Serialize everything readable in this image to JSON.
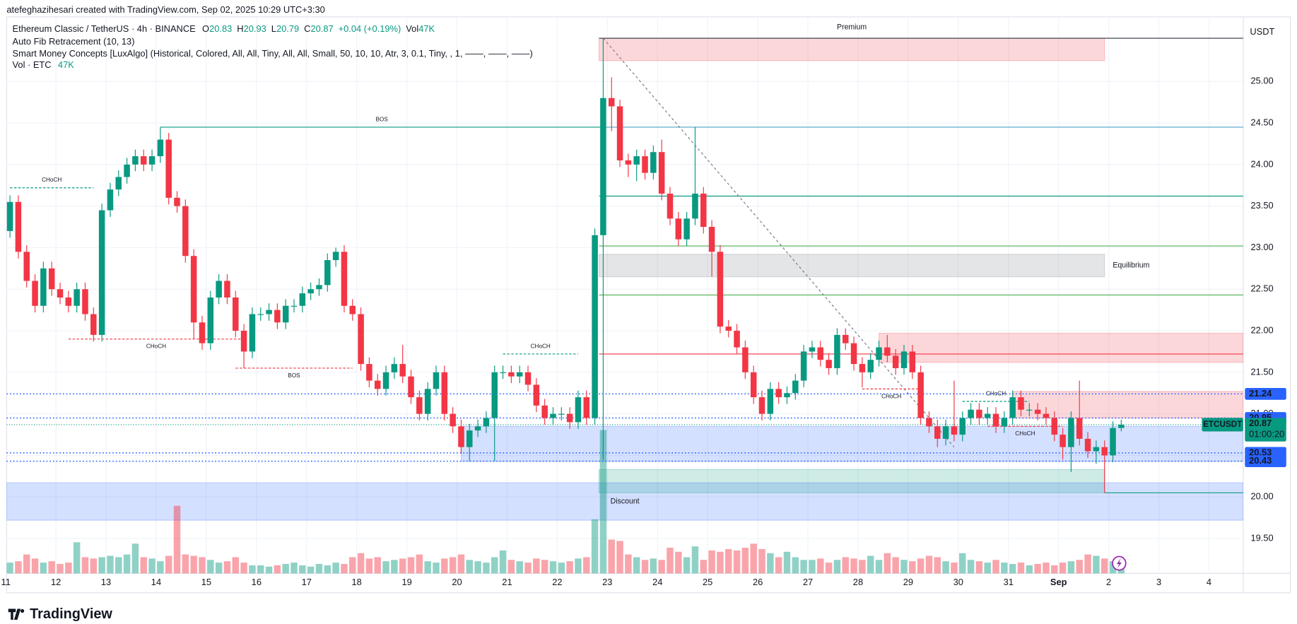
{
  "author_line": "atefeghazihesari created with TradingView.com, Sep 02, 2025 10:29 UTC+3:30",
  "brand": "TradingView",
  "chart_data": {
    "type": "candlestick",
    "title": "Ethereum Classic / TetherUS · 4h · BINANCE",
    "ohlc": [
      {
        "label": "O",
        "value": "20.83"
      },
      {
        "label": "H",
        "value": "20.93"
      },
      {
        "label": "L",
        "value": "20.79"
      },
      {
        "label": "C",
        "value": "20.87"
      }
    ],
    "change": "+0.04 (+0.19%)",
    "volume_prefix": "Vol",
    "volume_value": "47K",
    "indicators": [
      "Auto Fib Retracement (10, 13)",
      "Smart Money Concepts [LuxAlgo] (Historical, Colored, All, All, Tiny, All, All, Small, 50, 10, 10, Atr, 3, 0.1, Tiny, , 1, ——, ——, ——)"
    ],
    "volume_title": "Vol · ETC",
    "currency": "USDT",
    "up_color": "#089981",
    "down_color": "#f23645",
    "xlim": [
      -0.4,
      147.6
    ],
    "ylim": [
      19.08,
      25.98
    ],
    "yticks": [
      {
        "value": 19.5,
        "label": "19.50"
      },
      {
        "value": 20.0,
        "label": "20.00"
      },
      {
        "value": 20.5,
        "label": "20.50"
      },
      {
        "value": 21.0,
        "label": "21.00"
      },
      {
        "value": 21.5,
        "label": "21.50"
      },
      {
        "value": 22.0,
        "label": "22.00"
      },
      {
        "value": 22.5,
        "label": "22.50"
      },
      {
        "value": 23.0,
        "label": "23.00"
      },
      {
        "value": 23.5,
        "label": "23.50"
      },
      {
        "value": 24.0,
        "label": "24.00"
      },
      {
        "value": 24.5,
        "label": "24.50"
      },
      {
        "value": 25.0,
        "label": "25.00"
      }
    ],
    "xticks": [
      {
        "value": -0.5,
        "label": "11"
      },
      {
        "value": 5.5,
        "label": "12"
      },
      {
        "value": 11.5,
        "label": "13"
      },
      {
        "value": 17.5,
        "label": "14"
      },
      {
        "value": 23.5,
        "label": "15"
      },
      {
        "value": 29.5,
        "label": "16"
      },
      {
        "value": 35.5,
        "label": "17"
      },
      {
        "value": 41.5,
        "label": "18"
      },
      {
        "value": 47.5,
        "label": "19"
      },
      {
        "value": 53.5,
        "label": "20"
      },
      {
        "value": 59.5,
        "label": "21"
      },
      {
        "value": 65.5,
        "label": "22"
      },
      {
        "value": 71.5,
        "label": "23"
      },
      {
        "value": 77.5,
        "label": "24"
      },
      {
        "value": 83.5,
        "label": "25"
      },
      {
        "value": 89.5,
        "label": "26"
      },
      {
        "value": 95.5,
        "label": "27"
      },
      {
        "value": 101.5,
        "label": "28"
      },
      {
        "value": 107.5,
        "label": "29"
      },
      {
        "value": 113.5,
        "label": "30"
      },
      {
        "value": 119.5,
        "label": "31"
      },
      {
        "value": 125.5,
        "label": "Sep"
      },
      {
        "value": 131.5,
        "label": "2"
      },
      {
        "value": 137.5,
        "label": "3"
      },
      {
        "value": 143.5,
        "label": "4"
      }
    ],
    "grid": true,
    "open": [
      23.2,
      23.55,
      22.95,
      22.6,
      22.3,
      22.75,
      22.5,
      22.4,
      22.3,
      22.5,
      22.2,
      21.95,
      23.45,
      23.7,
      23.85,
      24.0,
      24.1,
      24.0,
      24.1,
      24.3,
      23.6,
      23.5,
      22.9,
      22.1,
      21.85,
      22.4,
      22.6,
      22.4,
      22.0,
      21.75,
      22.2,
      22.2,
      22.25,
      22.1,
      22.3,
      22.3,
      22.45,
      22.5,
      22.55,
      22.85,
      22.95,
      22.3,
      22.2,
      21.6,
      21.4,
      21.3,
      21.5,
      21.6,
      21.45,
      21.2,
      21.0,
      21.3,
      21.5,
      21.0,
      20.85,
      20.6,
      20.8,
      20.85,
      20.95,
      21.5,
      21.5,
      21.45,
      21.5,
      21.35,
      21.1,
      20.95,
      21.0,
      21.0,
      20.9,
      21.2,
      20.95,
      23.15,
      24.8,
      24.7,
      24.05,
      24.0,
      24.1,
      23.9,
      24.15,
      23.65,
      23.35,
      23.1,
      23.35,
      23.65,
      23.25,
      22.95,
      22.05,
      22.0,
      21.8,
      21.5,
      21.2,
      21.0,
      21.3,
      21.2,
      21.25,
      21.4,
      21.75,
      21.8,
      21.65,
      21.55,
      21.95,
      21.85,
      21.6,
      21.5,
      21.65,
      21.8,
      21.7,
      21.55,
      21.75,
      21.5,
      20.95,
      20.85,
      20.7,
      20.85,
      20.75,
      20.95,
      21.05,
      20.95,
      21.0,
      20.85,
      20.95,
      21.2,
      21.05,
      21.05,
      21.0,
      20.95,
      20.75,
      20.6,
      20.95,
      20.7,
      20.55,
      20.6,
      20.5,
      20.83
    ],
    "high": [
      23.63,
      23.63,
      23.03,
      22.68,
      22.83,
      22.83,
      22.58,
      22.48,
      22.58,
      22.58,
      22.28,
      23.53,
      23.78,
      23.93,
      24.08,
      24.18,
      24.18,
      24.18,
      24.45,
      24.38,
      23.68,
      23.58,
      22.98,
      22.18,
      22.48,
      22.68,
      22.68,
      22.48,
      22.08,
      22.28,
      22.28,
      22.33,
      22.33,
      22.38,
      22.38,
      22.53,
      22.58,
      22.63,
      22.93,
      23.0,
      23.03,
      22.38,
      22.28,
      21.68,
      21.48,
      21.58,
      21.68,
      21.83,
      21.53,
      21.28,
      21.38,
      21.58,
      21.58,
      21.08,
      20.93,
      20.88,
      20.93,
      21.03,
      21.58,
      21.58,
      21.58,
      21.58,
      21.58,
      21.43,
      21.18,
      21.08,
      21.08,
      21.08,
      21.28,
      21.28,
      23.23,
      25.52,
      25.05,
      24.78,
      24.13,
      24.18,
      24.18,
      24.23,
      24.3,
      23.73,
      23.43,
      23.43,
      24.45,
      23.73,
      23.33,
      23.03,
      22.13,
      22.08,
      21.88,
      21.58,
      21.28,
      21.38,
      21.38,
      21.33,
      21.48,
      21.83,
      21.88,
      21.88,
      21.73,
      22.03,
      22.03,
      21.93,
      21.68,
      21.73,
      21.88,
      21.95,
      21.78,
      21.83,
      21.83,
      21.58,
      21.03,
      20.93,
      20.93,
      21.4,
      21.03,
      21.13,
      21.13,
      21.08,
      21.08,
      21.03,
      21.28,
      21.28,
      21.13,
      21.13,
      21.08,
      21.03,
      20.83,
      21.03,
      21.4,
      20.78,
      20.68,
      20.68,
      20.91,
      20.93
    ],
    "low": [
      23.12,
      22.87,
      22.52,
      22.22,
      22.22,
      22.42,
      22.32,
      22.22,
      22.22,
      22.12,
      21.87,
      21.87,
      23.37,
      23.62,
      23.77,
      23.92,
      23.92,
      23.92,
      24.02,
      23.52,
      23.42,
      22.82,
      21.9,
      21.77,
      21.77,
      22.32,
      22.32,
      21.92,
      21.55,
      21.67,
      22.12,
      22.12,
      22.02,
      22.02,
      22.22,
      22.22,
      22.37,
      22.42,
      22.47,
      22.77,
      22.22,
      22.12,
      21.52,
      21.32,
      21.22,
      21.22,
      21.42,
      21.37,
      21.12,
      20.92,
      20.92,
      21.22,
      20.92,
      20.77,
      20.52,
      20.43,
      20.72,
      20.77,
      20.43,
      21.42,
      21.37,
      21.37,
      21.27,
      21.02,
      20.87,
      20.87,
      20.92,
      20.82,
      20.82,
      20.87,
      20.87,
      20.45,
      24.4,
      23.97,
      23.85,
      23.8,
      23.82,
      23.82,
      23.57,
      23.27,
      23.02,
      23.02,
      23.27,
      23.17,
      22.65,
      21.97,
      21.92,
      21.72,
      21.42,
      21.12,
      20.92,
      20.92,
      21.12,
      21.12,
      21.17,
      21.32,
      21.67,
      21.57,
      21.47,
      21.47,
      21.77,
      21.52,
      21.32,
      21.42,
      21.57,
      21.62,
      21.47,
      21.47,
      21.42,
      20.87,
      20.77,
      20.6,
      20.62,
      20.67,
      20.67,
      20.87,
      20.87,
      20.87,
      20.77,
      20.77,
      20.87,
      20.97,
      20.97,
      20.92,
      20.87,
      20.67,
      20.45,
      20.3,
      20.62,
      20.47,
      20.4,
      20.05,
      20.42,
      20.79
    ],
    "close": [
      23.55,
      22.95,
      22.6,
      22.3,
      22.75,
      22.5,
      22.4,
      22.3,
      22.5,
      22.2,
      21.95,
      23.45,
      23.7,
      23.85,
      24.0,
      24.1,
      24.0,
      24.1,
      24.3,
      23.6,
      23.5,
      22.9,
      22.1,
      21.85,
      22.4,
      22.6,
      22.4,
      22.0,
      21.75,
      22.2,
      22.2,
      22.25,
      22.1,
      22.3,
      22.3,
      22.45,
      22.5,
      22.55,
      22.85,
      22.95,
      22.3,
      22.2,
      21.6,
      21.4,
      21.3,
      21.5,
      21.6,
      21.45,
      21.2,
      21.0,
      21.3,
      21.5,
      21.0,
      20.85,
      20.6,
      20.8,
      20.85,
      20.95,
      21.5,
      21.5,
      21.45,
      21.5,
      21.35,
      21.1,
      20.95,
      21.0,
      21.0,
      20.9,
      21.2,
      20.95,
      23.15,
      24.8,
      24.7,
      24.05,
      24.0,
      24.1,
      23.9,
      24.15,
      23.65,
      23.35,
      23.1,
      23.35,
      23.65,
      23.25,
      22.95,
      22.05,
      22.0,
      21.8,
      21.5,
      21.2,
      21.0,
      21.3,
      21.2,
      21.25,
      21.4,
      21.75,
      21.8,
      21.65,
      21.55,
      21.95,
      21.85,
      21.6,
      21.5,
      21.65,
      21.8,
      21.7,
      21.55,
      21.75,
      21.5,
      20.95,
      20.85,
      20.7,
      20.85,
      20.75,
      20.95,
      21.05,
      20.95,
      21.0,
      20.85,
      20.95,
      21.2,
      21.05,
      21.05,
      21.0,
      20.95,
      20.75,
      20.6,
      20.95,
      20.7,
      20.55,
      20.6,
      20.5,
      20.83,
      20.87
    ],
    "volume": [
      40,
      45,
      70,
      55,
      40,
      45,
      35,
      40,
      115,
      60,
      55,
      60,
      65,
      60,
      70,
      110,
      60,
      55,
      45,
      65,
      250,
      70,
      65,
      60,
      50,
      40,
      45,
      60,
      40,
      30,
      30,
      25,
      30,
      35,
      40,
      30,
      25,
      35,
      30,
      40,
      35,
      60,
      75,
      55,
      60,
      45,
      50,
      55,
      60,
      70,
      45,
      40,
      55,
      60,
      70,
      50,
      45,
      40,
      60,
      85,
      50,
      45,
      40,
      55,
      50,
      45,
      40,
      45,
      55,
      60,
      200,
      530,
      125,
      120,
      70,
      60,
      50,
      55,
      50,
      95,
      80,
      60,
      100,
      50,
      85,
      80,
      90,
      85,
      95,
      110,
      90,
      75,
      60,
      80,
      60,
      50,
      50,
      55,
      40,
      50,
      60,
      55,
      50,
      65,
      50,
      75,
      60,
      50,
      45,
      55,
      65,
      60,
      45,
      40,
      75,
      50,
      45,
      40,
      50,
      40,
      35,
      40,
      30,
      35,
      40,
      30,
      40,
      45,
      50,
      70,
      65,
      55,
      45,
      47
    ],
    "zones": [
      {
        "label": "Premium",
        "label_position": "top",
        "low": 25.25,
        "high": 25.52,
        "start": 70.5,
        "end": 131,
        "color": "#f23645"
      },
      {
        "label": "Equilibrium",
        "label_position": "right",
        "low": 22.65,
        "high": 22.92,
        "start": 70.5,
        "end": 131,
        "color": "#787b86"
      },
      {
        "label": "Discount",
        "label_position": "inside",
        "low": 19.72,
        "high": 20.17,
        "color": "#2962ff"
      },
      {
        "low": 20.05,
        "high": 20.33,
        "start": 70.5,
        "end": 131,
        "color": "#089981"
      },
      {
        "low": 20.43,
        "high": 20.85,
        "start": 54,
        "color": "#2962ff"
      },
      {
        "low": 21.62,
        "high": 21.97,
        "start": 104,
        "color": "#f23645"
      },
      {
        "low": 20.95,
        "high": 21.27,
        "start": 120,
        "color": "#f23645"
      }
    ],
    "fib_levels": [
      {
        "level": 25.52,
        "start": 70.5,
        "color": "#434651"
      },
      {
        "level": 24.45,
        "start": 70.5,
        "color": "#4ba3c3"
      },
      {
        "level": 23.62,
        "start": 70.5,
        "color": "#089981"
      },
      {
        "level": 23.02,
        "start": 70.5,
        "color": "#4caf50"
      },
      {
        "level": 22.43,
        "start": 70.5,
        "color": "#4caf50"
      },
      {
        "level": 21.72,
        "start": 70.5,
        "color": "#f23645"
      },
      {
        "level": 20.05,
        "start": 131,
        "color": "#089981"
      }
    ],
    "trend_line": {
      "x": [
        71,
        113
      ],
      "y": [
        25.52,
        20.6
      ]
    },
    "structures": [
      {
        "label": "CHoCH",
        "bias": "bullish",
        "style": "dashed",
        "level": 23.72,
        "start": 0,
        "end": 10
      },
      {
        "label": "BOS",
        "bias": "bullish",
        "style": "solid",
        "level": 24.45,
        "start": 18,
        "end": 71
      },
      {
        "label": "CHoCH",
        "bias": "bearish",
        "style": "dashed",
        "level": 21.9,
        "start": 7,
        "end": 28
      },
      {
        "label": "BOS",
        "bias": "bearish",
        "style": "dashed",
        "level": 21.55,
        "start": 27,
        "end": 41
      },
      {
        "label": "CHoCH",
        "bias": "bullish",
        "style": "dashed",
        "level": 21.72,
        "start": 59,
        "end": 68
      },
      {
        "label": "CHoCH",
        "bias": "bearish",
        "style": "dashed",
        "level": 21.3,
        "start": 102,
        "end": 109
      },
      {
        "label": "CHoCH",
        "bias": "bullish",
        "style": "dashed",
        "level": 21.15,
        "start": 114,
        "end": 122
      },
      {
        "label": "CHoCH",
        "bias": "bearish",
        "style": "dashed",
        "level": 20.85,
        "start": 117,
        "end": 126
      }
    ],
    "price_lines": [
      {
        "value": 21.24,
        "label": "21.24",
        "color": "#2962ff"
      },
      {
        "value": 20.95,
        "label": "20.95",
        "color": "#2962ff"
      },
      {
        "value": 20.53,
        "label": "20.53",
        "color": "#2962ff"
      },
      {
        "value": 20.43,
        "label": "20.43",
        "color": "#2962ff"
      }
    ],
    "last_price": {
      "value": 20.87,
      "label": "20.87",
      "symbol": "ETCUSDT",
      "countdown": "01:00:20",
      "color": "#089981"
    }
  }
}
